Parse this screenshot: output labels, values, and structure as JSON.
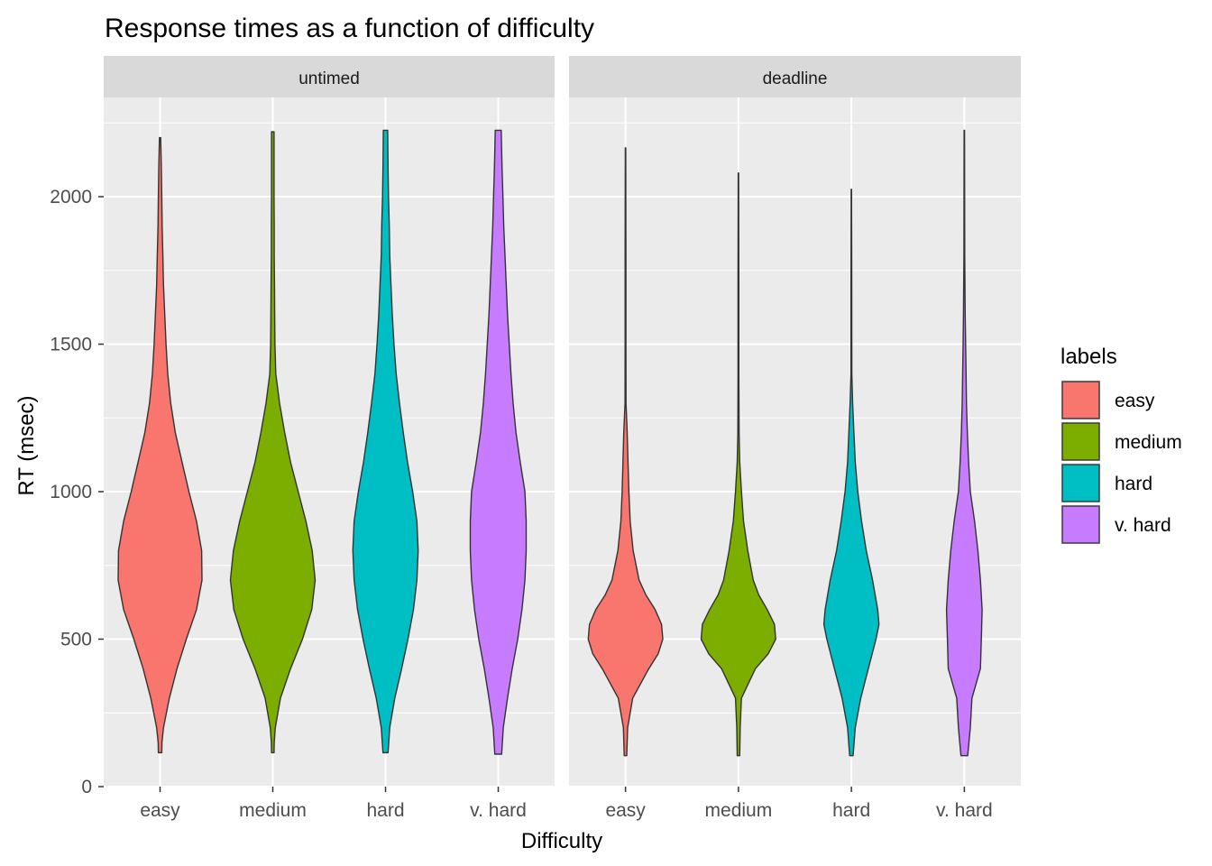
{
  "chart_data": {
    "type": "violin",
    "title": "Response times as a function of difficulty",
    "xlabel": "Difficulty",
    "ylabel": "RT (msec)",
    "ylim": [
      0,
      2300
    ],
    "yticks": [
      0,
      500,
      1000,
      1500,
      2000
    ],
    "grid": true,
    "legend": {
      "title": "labels",
      "position": "right",
      "entries": [
        "easy",
        "medium",
        "hard",
        "v. hard"
      ]
    },
    "categories": [
      "easy",
      "medium",
      "hard",
      "v. hard"
    ],
    "colors": {
      "easy": "#F8766D",
      "medium": "#7CAE00",
      "hard": "#00BFC4",
      "v. hard": "#C77CFF"
    },
    "facets": [
      {
        "label": "untimed",
        "violins": [
          {
            "category": "easy",
            "min": 115,
            "max": 2200,
            "profile": [
              [
                115,
                0.04
              ],
              [
                150,
                0.045
              ],
              [
                200,
                0.08
              ],
              [
                300,
                0.22
              ],
              [
                400,
                0.4
              ],
              [
                500,
                0.62
              ],
              [
                600,
                0.86
              ],
              [
                700,
                0.99
              ],
              [
                800,
                0.98
              ],
              [
                900,
                0.86
              ],
              [
                1000,
                0.68
              ],
              [
                1100,
                0.52
              ],
              [
                1200,
                0.36
              ],
              [
                1300,
                0.25
              ],
              [
                1400,
                0.18
              ],
              [
                1500,
                0.14
              ],
              [
                1600,
                0.11
              ],
              [
                1700,
                0.08
              ],
              [
                1800,
                0.065
              ],
              [
                1900,
                0.05
              ],
              [
                2000,
                0.04
              ],
              [
                2100,
                0.03
              ],
              [
                2200,
                0.015
              ]
            ]
          },
          {
            "category": "medium",
            "min": 115,
            "max": 2220,
            "profile": [
              [
                115,
                0.03
              ],
              [
                150,
                0.035
              ],
              [
                200,
                0.06
              ],
              [
                300,
                0.18
              ],
              [
                400,
                0.42
              ],
              [
                500,
                0.7
              ],
              [
                600,
                0.92
              ],
              [
                700,
                1.0
              ],
              [
                800,
                0.93
              ],
              [
                900,
                0.78
              ],
              [
                1000,
                0.6
              ],
              [
                1100,
                0.42
              ],
              [
                1200,
                0.28
              ],
              [
                1300,
                0.16
              ],
              [
                1400,
                0.07
              ],
              [
                1500,
                0.05
              ],
              [
                1600,
                0.045
              ],
              [
                1700,
                0.04
              ],
              [
                1800,
                0.035
              ],
              [
                1900,
                0.035
              ],
              [
                2000,
                0.03
              ],
              [
                2100,
                0.03
              ],
              [
                2220,
                0.03
              ]
            ]
          },
          {
            "category": "hard",
            "min": 115,
            "max": 2225,
            "profile": [
              [
                115,
                0.06
              ],
              [
                200,
                0.1
              ],
              [
                300,
                0.22
              ],
              [
                400,
                0.38
              ],
              [
                500,
                0.53
              ],
              [
                600,
                0.66
              ],
              [
                700,
                0.74
              ],
              [
                800,
                0.77
              ],
              [
                900,
                0.74
              ],
              [
                1000,
                0.64
              ],
              [
                1100,
                0.52
              ],
              [
                1200,
                0.42
              ],
              [
                1300,
                0.33
              ],
              [
                1400,
                0.25
              ],
              [
                1500,
                0.2
              ],
              [
                1600,
                0.16
              ],
              [
                1700,
                0.13
              ],
              [
                1800,
                0.1
              ],
              [
                1900,
                0.09
              ],
              [
                2000,
                0.07
              ],
              [
                2100,
                0.06
              ],
              [
                2225,
                0.05
              ]
            ]
          },
          {
            "category": "v. hard",
            "min": 110,
            "max": 2225,
            "profile": [
              [
                110,
                0.08
              ],
              [
                200,
                0.12
              ],
              [
                300,
                0.22
              ],
              [
                400,
                0.33
              ],
              [
                500,
                0.46
              ],
              [
                600,
                0.56
              ],
              [
                700,
                0.63
              ],
              [
                800,
                0.66
              ],
              [
                900,
                0.66
              ],
              [
                1000,
                0.63
              ],
              [
                1100,
                0.52
              ],
              [
                1200,
                0.42
              ],
              [
                1300,
                0.35
              ],
              [
                1400,
                0.3
              ],
              [
                1500,
                0.26
              ],
              [
                1600,
                0.22
              ],
              [
                1700,
                0.19
              ],
              [
                1800,
                0.16
              ],
              [
                1900,
                0.13
              ],
              [
                2000,
                0.11
              ],
              [
                2100,
                0.09
              ],
              [
                2225,
                0.07
              ]
            ]
          }
        ]
      },
      {
        "label": "deadline",
        "violins": [
          {
            "category": "easy",
            "min": 105,
            "max": 2165,
            "profile": [
              [
                105,
                0.03
              ],
              [
                200,
                0.05
              ],
              [
                300,
                0.17
              ],
              [
                400,
                0.55
              ],
              [
                450,
                0.77
              ],
              [
                500,
                0.88
              ],
              [
                550,
                0.85
              ],
              [
                600,
                0.7
              ],
              [
                650,
                0.48
              ],
              [
                700,
                0.32
              ],
              [
                800,
                0.18
              ],
              [
                900,
                0.11
              ],
              [
                1000,
                0.08
              ],
              [
                1100,
                0.06
              ],
              [
                1200,
                0.04
              ],
              [
                1300,
                0.012
              ],
              [
                1500,
                0.01
              ],
              [
                1800,
                0.01
              ],
              [
                2165,
                0.005
              ]
            ]
          },
          {
            "category": "medium",
            "min": 105,
            "max": 2080,
            "profile": [
              [
                105,
                0.03
              ],
              [
                200,
                0.04
              ],
              [
                300,
                0.07
              ],
              [
                400,
                0.4
              ],
              [
                450,
                0.7
              ],
              [
                500,
                0.88
              ],
              [
                550,
                0.85
              ],
              [
                600,
                0.68
              ],
              [
                650,
                0.48
              ],
              [
                700,
                0.35
              ],
              [
                800,
                0.22
              ],
              [
                900,
                0.12
              ],
              [
                1000,
                0.07
              ],
              [
                1100,
                0.03
              ],
              [
                1200,
                0.015
              ],
              [
                1400,
                0.01
              ],
              [
                1700,
                0.01
              ],
              [
                2080,
                0.005
              ]
            ]
          },
          {
            "category": "hard",
            "min": 105,
            "max": 2025,
            "profile": [
              [
                105,
                0.04
              ],
              [
                200,
                0.09
              ],
              [
                300,
                0.22
              ],
              [
                400,
                0.4
              ],
              [
                500,
                0.58
              ],
              [
                550,
                0.65
              ],
              [
                600,
                0.62
              ],
              [
                700,
                0.5
              ],
              [
                800,
                0.35
              ],
              [
                900,
                0.24
              ],
              [
                1000,
                0.15
              ],
              [
                1100,
                0.09
              ],
              [
                1200,
                0.06
              ],
              [
                1300,
                0.03
              ],
              [
                1400,
                0.01
              ],
              [
                1700,
                0.008
              ],
              [
                2025,
                0.004
              ]
            ]
          },
          {
            "category": "v. hard",
            "min": 105,
            "max": 2225,
            "profile": [
              [
                105,
                0.08
              ],
              [
                200,
                0.14
              ],
              [
                300,
                0.18
              ],
              [
                400,
                0.38
              ],
              [
                500,
                0.4
              ],
              [
                600,
                0.42
              ],
              [
                700,
                0.38
              ],
              [
                800,
                0.32
              ],
              [
                900,
                0.24
              ],
              [
                1000,
                0.14
              ],
              [
                1100,
                0.1
              ],
              [
                1200,
                0.07
              ],
              [
                1300,
                0.05
              ],
              [
                1400,
                0.04
              ],
              [
                1500,
                0.03
              ],
              [
                1600,
                0.02
              ],
              [
                1800,
                0.01
              ],
              [
                2225,
                0.005
              ]
            ]
          }
        ]
      }
    ]
  }
}
